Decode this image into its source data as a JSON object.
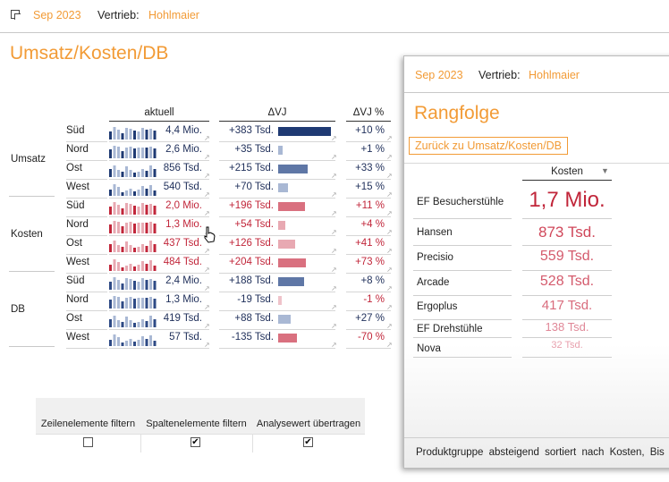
{
  "header": {
    "icon": "expand-icon",
    "period": "Sep 2023",
    "sales_label": "Vertrieb:",
    "sales_person": "Hohlmaier"
  },
  "page_title": "Umsatz/Kosten/DB",
  "table": {
    "col_aktuell": "aktuell",
    "col_dvj": "ΔVJ",
    "col_dvj_pct": "ΔVJ %",
    "groups": [
      {
        "label": "Umsatz",
        "rows": [
          {
            "region": "Süd",
            "value": "4,4 Mio.",
            "dvj": "+383 Tsd.",
            "dvj_num": 383,
            "pct": "+10 %"
          },
          {
            "region": "Nord",
            "value": "2,6 Mio.",
            "dvj": "+35 Tsd.",
            "dvj_num": 35,
            "pct": "+1 %"
          },
          {
            "region": "Ost",
            "value": "856 Tsd.",
            "dvj": "+215 Tsd.",
            "dvj_num": 215,
            "pct": "+33 %"
          },
          {
            "region": "West",
            "value": "540 Tsd.",
            "dvj": "+70 Tsd.",
            "dvj_num": 70,
            "pct": "+15 %"
          }
        ]
      },
      {
        "label": "Kosten",
        "rows": [
          {
            "region": "Süd",
            "value": "2,0 Mio.",
            "dvj": "+196 Tsd.",
            "dvj_num": 196,
            "pct": "+11 %"
          },
          {
            "region": "Nord",
            "value": "1,3 Mio.",
            "dvj": "+54 Tsd.",
            "dvj_num": 54,
            "pct": "+4 %"
          },
          {
            "region": "Ost",
            "value": "437 Tsd.",
            "dvj": "+126 Tsd.",
            "dvj_num": 126,
            "pct": "+41 %"
          },
          {
            "region": "West",
            "value": "484 Tsd.",
            "dvj": "+204 Tsd.",
            "dvj_num": 204,
            "pct": "+73 %"
          }
        ]
      },
      {
        "label": "DB",
        "rows": [
          {
            "region": "Süd",
            "value": "2,4 Mio.",
            "dvj": "+188 Tsd.",
            "dvj_num": 188,
            "pct": "+8 %"
          },
          {
            "region": "Nord",
            "value": "1,3 Mio.",
            "dvj": "-19 Tsd.",
            "dvj_num": -19,
            "pct": "-1 %"
          },
          {
            "region": "Ost",
            "value": "419 Tsd.",
            "dvj": "+88 Tsd.",
            "dvj_num": 88,
            "pct": "+27 %"
          },
          {
            "region": "West",
            "value": "57 Tsd.",
            "dvj": "-135 Tsd.",
            "dvj_num": -135,
            "pct": "-70 %"
          }
        ]
      }
    ]
  },
  "filters": {
    "columns": [
      {
        "label": "Zeilenelemente filtern",
        "checked": false
      },
      {
        "label": "Spaltenelemente filtern",
        "checked": true
      },
      {
        "label": "Analysewert übertragen",
        "checked": true
      }
    ]
  },
  "panel": {
    "period": "Sep 2023",
    "sales_label": "Vertrieb:",
    "sales_person": "Hohlmaier",
    "title": "Rangfolge",
    "back_button": "Zurück zu Umsatz/Kosten/DB",
    "column_header": "Kosten",
    "sort_icon": "sort-down-icon",
    "rows": [
      {
        "name": "EF Besucherstühle",
        "value": "1,7 Mio."
      },
      {
        "name": "Hansen",
        "value": "873 Tsd."
      },
      {
        "name": "Precisio",
        "value": "559 Tsd."
      },
      {
        "name": "Arcade",
        "value": "528 Tsd."
      },
      {
        "name": "Ergoplus",
        "value": "417 Tsd."
      },
      {
        "name": "EF Drehstühle",
        "value": "138 Tsd."
      },
      {
        "name": "Nova",
        "value": "32 Tsd."
      }
    ],
    "footer": "Produktgruppe absteigend sortiert nach Kosten, Bis"
  },
  "colors": {
    "accent": "#f29b36",
    "umsatz": "#1f3a73",
    "umsatz_light": "#a9b8d4",
    "kosten": "#c1263a",
    "kosten_light": "#e8a9b2",
    "db": "#2e4a85"
  }
}
